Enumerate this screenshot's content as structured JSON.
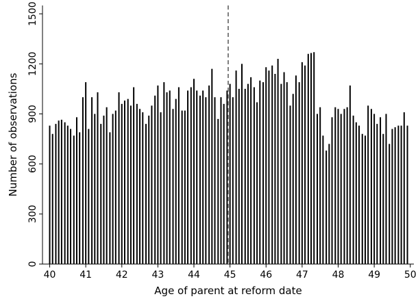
{
  "chart_data": {
    "type": "bar",
    "title": "",
    "xlabel": "Age of parent at reform date",
    "ylabel": "Number of observations",
    "xlim": [
      39.8,
      50.1
    ],
    "ylim": [
      0,
      1550
    ],
    "xticks": [
      40,
      41,
      42,
      43,
      44,
      45,
      46,
      47,
      48,
      49,
      50
    ],
    "yticks": [
      0,
      300,
      600,
      900,
      1200,
      1500
    ],
    "reference_line": {
      "x": 44.95,
      "style": "dashed"
    },
    "grid": false,
    "colors": {
      "bars": "#000000",
      "reference_line": "#555555"
    },
    "bin_width": 0.0833,
    "x": [
      40.0,
      40.08,
      40.17,
      40.25,
      40.33,
      40.42,
      40.5,
      40.58,
      40.67,
      40.75,
      40.83,
      40.92,
      41.0,
      41.08,
      41.17,
      41.25,
      41.33,
      41.42,
      41.5,
      41.58,
      41.67,
      41.75,
      41.83,
      41.92,
      42.0,
      42.08,
      42.17,
      42.25,
      42.33,
      42.42,
      42.5,
      42.58,
      42.67,
      42.75,
      42.83,
      42.92,
      43.0,
      43.08,
      43.17,
      43.25,
      43.33,
      43.42,
      43.5,
      43.58,
      43.67,
      43.75,
      43.83,
      43.92,
      44.0,
      44.08,
      44.17,
      44.25,
      44.33,
      44.42,
      44.5,
      44.58,
      44.67,
      44.75,
      44.83,
      44.92,
      45.0,
      45.08,
      45.17,
      45.25,
      45.33,
      45.42,
      45.5,
      45.58,
      45.67,
      45.75,
      45.83,
      45.92,
      46.0,
      46.08,
      46.17,
      46.25,
      46.33,
      46.42,
      46.5,
      46.58,
      46.67,
      46.75,
      46.83,
      46.92,
      47.0,
      47.08,
      47.17,
      47.25,
      47.33,
      47.42,
      47.5,
      47.58,
      47.67,
      47.75,
      47.83,
      47.92,
      48.0,
      48.08,
      48.17,
      48.25,
      48.33,
      48.42,
      48.5,
      48.58,
      48.67,
      48.75,
      48.83,
      48.92,
      49.0,
      49.08,
      49.17,
      49.25,
      49.33,
      49.42,
      49.5,
      49.58,
      49.67,
      49.75,
      49.83,
      49.92
    ],
    "values": [
      830,
      780,
      840,
      860,
      865,
      850,
      830,
      810,
      770,
      880,
      790,
      1000,
      1090,
      810,
      1000,
      900,
      1030,
      840,
      890,
      940,
      790,
      900,
      920,
      1030,
      960,
      980,
      990,
      950,
      1060,
      960,
      930,
      910,
      840,
      890,
      950,
      1010,
      1070,
      910,
      1090,
      1030,
      1040,
      930,
      990,
      1060,
      920,
      920,
      1040,
      1060,
      1110,
      1040,
      1010,
      1040,
      1000,
      1070,
      1170,
      1000,
      870,
      1000,
      960,
      1040,
      1080,
      1000,
      1160,
      1050,
      1200,
      1050,
      1080,
      1120,
      1060,
      970,
      1100,
      1090,
      1180,
      1160,
      1190,
      1140,
      1230,
      1080,
      1150,
      1090,
      950,
      1020,
      1130,
      1090,
      1210,
      1190,
      1260,
      1265,
      1270,
      900,
      940,
      770,
      680,
      720,
      880,
      940,
      930,
      900,
      930,
      940,
      1070,
      890,
      850,
      830,
      780,
      770,
      950,
      930,
      900,
      840,
      880,
      780,
      900,
      720,
      810,
      820,
      830,
      830,
      910,
      830
    ]
  }
}
